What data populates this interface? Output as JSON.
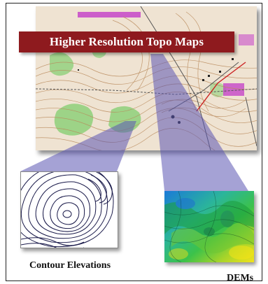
{
  "title": "Higher Resolution Topo Maps",
  "insets": {
    "contour_label": "Contour Elevations",
    "dem_label": "DEMs"
  },
  "colors": {
    "banner": "#8e1a1e",
    "beam": "#5b56b3",
    "map_background": "#efe3d2",
    "vegetation": "#8ed07a",
    "urban": "#c84fc9"
  }
}
